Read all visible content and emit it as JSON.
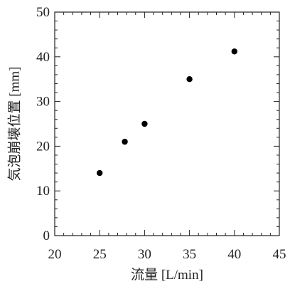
{
  "chart_data": {
    "type": "scatter",
    "title": "",
    "xlabel": "流量 [L/min]",
    "ylabel": "気泡崩壊位置 [mm]",
    "xlim": [
      20,
      45
    ],
    "ylim": [
      0,
      50
    ],
    "x_major_ticks": [
      20,
      25,
      30,
      35,
      40,
      45
    ],
    "y_major_ticks": [
      0,
      10,
      20,
      30,
      40,
      50
    ],
    "x_tick_labels": [
      "20",
      "25",
      "30",
      "35",
      "40",
      "45"
    ],
    "y_tick_labels": [
      "0",
      "10",
      "20",
      "30",
      "40",
      "50"
    ],
    "x_minor_step": 1,
    "y_minor_step": 2,
    "grid": false,
    "series": [
      {
        "marker_color": "#000000",
        "points": [
          {
            "x": 25,
            "y": 14
          },
          {
            "x": 27.8,
            "y": 21
          },
          {
            "x": 30,
            "y": 25
          },
          {
            "x": 35,
            "y": 35
          },
          {
            "x": 40,
            "y": 41.2
          }
        ]
      }
    ]
  }
}
